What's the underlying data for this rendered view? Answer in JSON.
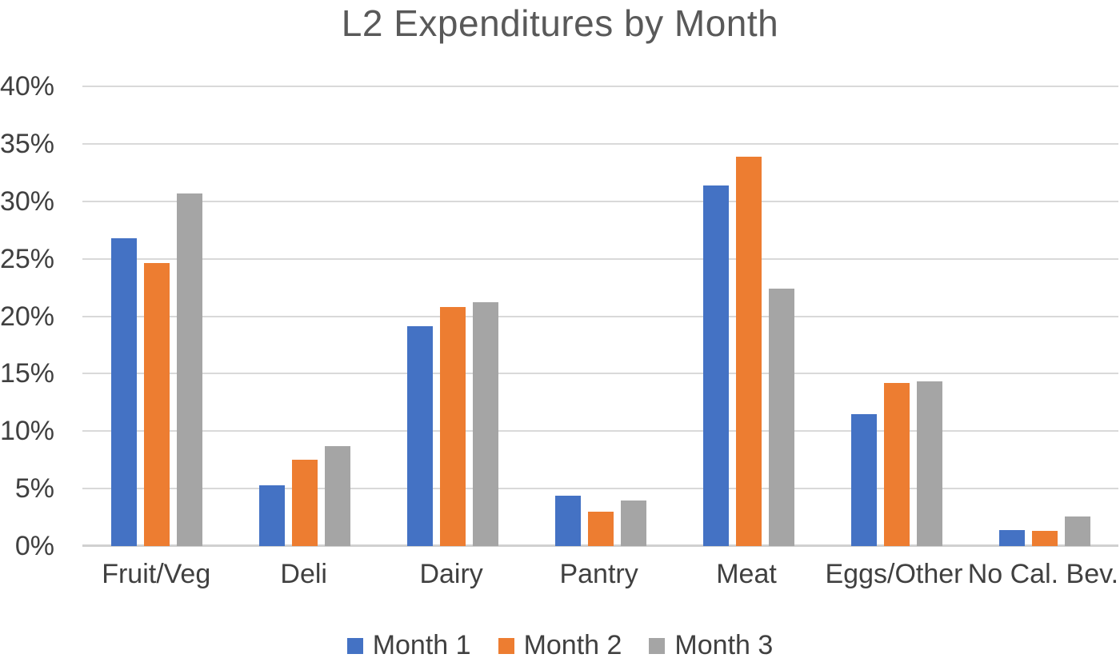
{
  "chart_data": {
    "type": "bar",
    "title": "L2 Expenditures by Month",
    "categories": [
      "Fruit/Veg",
      "Deli",
      "Dairy",
      "Pantry",
      "Meat",
      "Eggs/Other",
      "No Cal. Bev."
    ],
    "series": [
      {
        "name": "Month 1",
        "color": "#4472C4",
        "values": [
          26.8,
          5.3,
          19.1,
          4.4,
          31.4,
          11.5,
          1.4
        ]
      },
      {
        "name": "Month 2",
        "color": "#ED7D31",
        "values": [
          24.6,
          7.5,
          20.8,
          3.0,
          33.9,
          14.2,
          1.3
        ]
      },
      {
        "name": "Month 3",
        "color": "#A5A5A5",
        "values": [
          30.7,
          8.7,
          21.2,
          4.0,
          22.4,
          14.3,
          2.6
        ]
      }
    ],
    "y_axis": {
      "unit": "%",
      "min": 0,
      "max": 40,
      "step": 5,
      "ticks": [
        "40%",
        "35%",
        "30%",
        "25%",
        "20%",
        "15%",
        "10%",
        "5%",
        "0%"
      ]
    },
    "xlabel": "",
    "ylabel": "",
    "grid": true,
    "legend_position": "bottom"
  },
  "colors": {
    "background": "#ffffff",
    "title_text": "#595959",
    "axis_text": "#404040",
    "gridline": "#d9d9d9",
    "axis_line": "#d0d0d0"
  }
}
